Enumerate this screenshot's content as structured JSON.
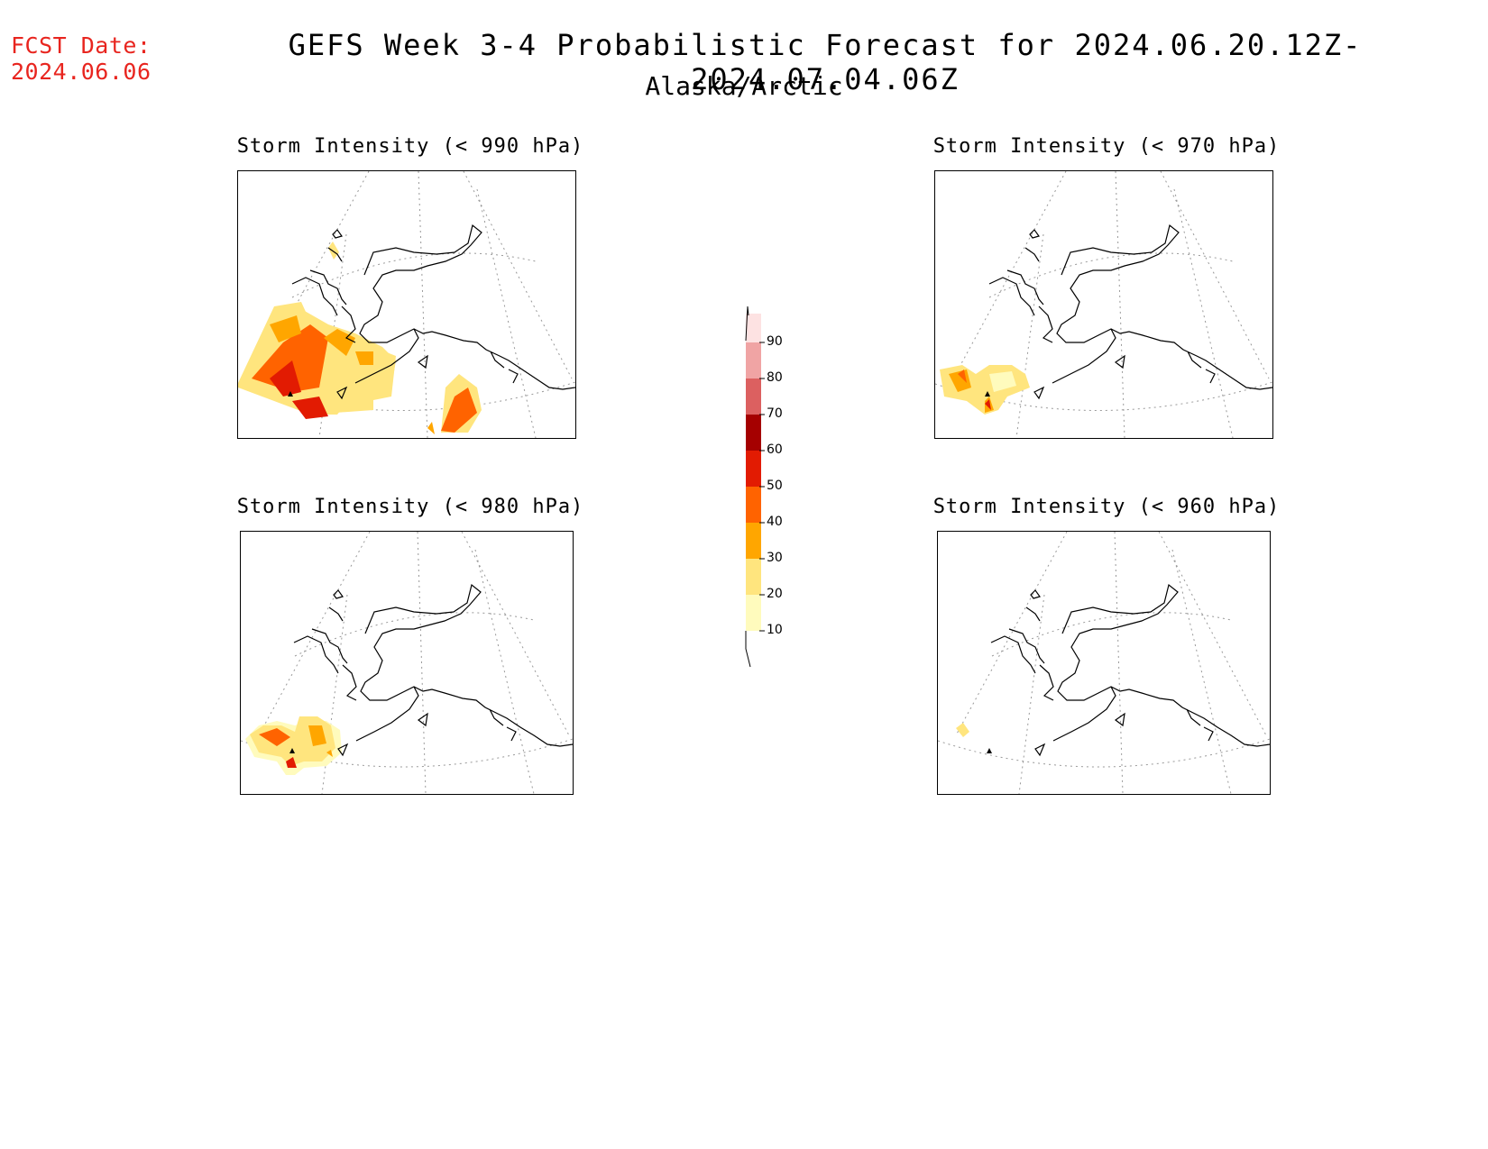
{
  "header": {
    "fcst_label": "FCST Date:",
    "fcst_date": "2024.06.06",
    "title": "GEFS Week 3-4 Probabilistic Forecast for 2024.06.20.12Z-2024.07.04.06Z",
    "region": "Alaska/Arctic"
  },
  "panels": [
    {
      "id": "p990",
      "title": "Storm Intensity (< 990 hPa)"
    },
    {
      "id": "p970",
      "title": "Storm Intensity (< 970 hPa)"
    },
    {
      "id": "p980",
      "title": "Storm Intensity (< 980 hPa)"
    },
    {
      "id": "p960",
      "title": "Storm Intensity (< 960 hPa)"
    }
  ],
  "colorbar": {
    "levels": [
      "10",
      "20",
      "30",
      "40",
      "50",
      "60",
      "70",
      "80",
      "90"
    ],
    "colors": [
      "#fffbbd",
      "#ffe57e",
      "#ffa600",
      "#ff6300",
      "#e21b02",
      "#a50000",
      "#dc6060",
      "#f0a4a4",
      "#fde2e2"
    ]
  }
}
